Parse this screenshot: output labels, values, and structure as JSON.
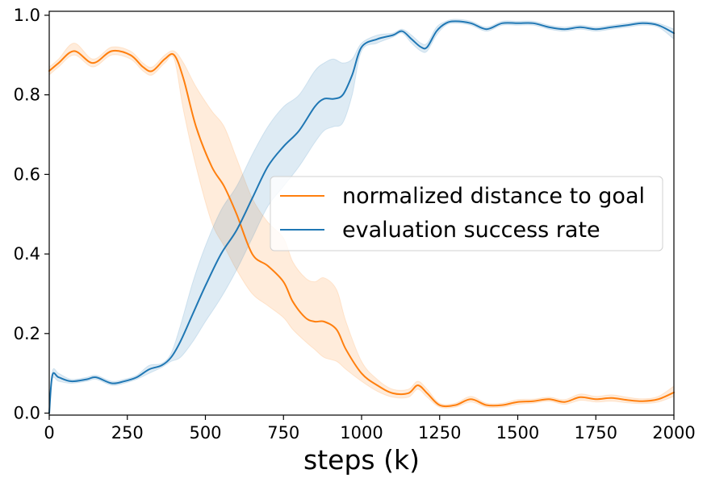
{
  "chart_data": {
    "type": "line",
    "title": "",
    "xlabel": "steps (k)",
    "ylabel": "",
    "xlim": [
      0,
      2000
    ],
    "ylim": [
      -0.005,
      1.01
    ],
    "xticks": [
      0,
      250,
      500,
      750,
      1000,
      1250,
      1500,
      1750,
      2000
    ],
    "yticks": [
      0.0,
      0.2,
      0.4,
      0.6,
      0.8,
      1.0
    ],
    "xtick_labels": [
      "0",
      "250",
      "500",
      "750",
      "1000",
      "1250",
      "1500",
      "1750",
      "2000"
    ],
    "ytick_labels": [
      "0.0",
      "0.2",
      "0.4",
      "0.6",
      "0.8",
      "1.0"
    ],
    "grid": false,
    "legend_position": "center-right",
    "series": [
      {
        "name": "normalized distance to goal",
        "color": "#ff7f0e",
        "x": [
          0,
          30,
          80,
          140,
          200,
          260,
          300,
          330,
          370,
          400,
          430,
          470,
          520,
          560,
          600,
          650,
          700,
          750,
          780,
          820,
          850,
          880,
          920,
          950,
          1000,
          1050,
          1100,
          1150,
          1180,
          1210,
          1250,
          1300,
          1350,
          1400,
          1450,
          1500,
          1550,
          1600,
          1650,
          1700,
          1750,
          1800,
          1850,
          1900,
          1950,
          2000
        ],
        "y": [
          0.86,
          0.88,
          0.91,
          0.88,
          0.91,
          0.9,
          0.87,
          0.86,
          0.89,
          0.9,
          0.84,
          0.72,
          0.62,
          0.57,
          0.5,
          0.4,
          0.37,
          0.33,
          0.28,
          0.24,
          0.23,
          0.23,
          0.21,
          0.16,
          0.1,
          0.07,
          0.05,
          0.05,
          0.07,
          0.05,
          0.02,
          0.02,
          0.035,
          0.02,
          0.02,
          0.028,
          0.03,
          0.035,
          0.028,
          0.04,
          0.035,
          0.038,
          0.033,
          0.03,
          0.035,
          0.052
        ],
        "lower": [
          0.85,
          0.87,
          0.9,
          0.87,
          0.9,
          0.89,
          0.86,
          0.85,
          0.88,
          0.89,
          0.76,
          0.62,
          0.48,
          0.42,
          0.36,
          0.3,
          0.27,
          0.24,
          0.21,
          0.18,
          0.16,
          0.14,
          0.13,
          0.11,
          0.08,
          0.055,
          0.04,
          0.04,
          0.06,
          0.04,
          0.015,
          0.015,
          0.028,
          0.015,
          0.015,
          0.022,
          0.025,
          0.03,
          0.022,
          0.032,
          0.028,
          0.03,
          0.026,
          0.024,
          0.028,
          0.042
        ],
        "upper": [
          0.87,
          0.89,
          0.93,
          0.89,
          0.92,
          0.91,
          0.88,
          0.87,
          0.9,
          0.91,
          0.88,
          0.82,
          0.76,
          0.72,
          0.64,
          0.54,
          0.48,
          0.44,
          0.38,
          0.34,
          0.33,
          0.34,
          0.31,
          0.23,
          0.13,
          0.085,
          0.06,
          0.06,
          0.08,
          0.06,
          0.025,
          0.025,
          0.042,
          0.025,
          0.025,
          0.034,
          0.035,
          0.04,
          0.034,
          0.048,
          0.042,
          0.046,
          0.04,
          0.036,
          0.042,
          0.068
        ]
      },
      {
        "name": "evaluation success rate",
        "color": "#1f77b4",
        "x": [
          0,
          10,
          30,
          70,
          120,
          150,
          200,
          240,
          280,
          320,
          360,
          390,
          420,
          460,
          500,
          550,
          600,
          650,
          700,
          750,
          800,
          850,
          880,
          910,
          940,
          970,
          1000,
          1050,
          1100,
          1130,
          1160,
          1190,
          1210,
          1240,
          1270,
          1300,
          1350,
          1400,
          1450,
          1500,
          1550,
          1600,
          1650,
          1700,
          1750,
          1800,
          1850,
          1900,
          1950,
          2000
        ],
        "y": [
          0.0,
          0.095,
          0.09,
          0.08,
          0.085,
          0.09,
          0.075,
          0.08,
          0.09,
          0.11,
          0.12,
          0.14,
          0.18,
          0.25,
          0.32,
          0.4,
          0.46,
          0.54,
          0.62,
          0.67,
          0.71,
          0.77,
          0.79,
          0.79,
          0.8,
          0.85,
          0.92,
          0.94,
          0.95,
          0.96,
          0.94,
          0.92,
          0.92,
          0.96,
          0.98,
          0.985,
          0.98,
          0.965,
          0.98,
          0.98,
          0.98,
          0.97,
          0.965,
          0.97,
          0.965,
          0.97,
          0.975,
          0.98,
          0.975,
          0.955
        ],
        "lower": [
          0.0,
          0.085,
          0.08,
          0.075,
          0.08,
          0.085,
          0.07,
          0.075,
          0.085,
          0.1,
          0.115,
          0.13,
          0.14,
          0.18,
          0.23,
          0.29,
          0.36,
          0.44,
          0.52,
          0.57,
          0.62,
          0.68,
          0.71,
          0.72,
          0.73,
          0.8,
          0.91,
          0.93,
          0.945,
          0.955,
          0.93,
          0.91,
          0.91,
          0.95,
          0.975,
          0.98,
          0.975,
          0.96,
          0.975,
          0.975,
          0.975,
          0.965,
          0.96,
          0.965,
          0.96,
          0.965,
          0.97,
          0.975,
          0.97,
          0.94
        ],
        "upper": [
          0.0,
          0.105,
          0.1,
          0.085,
          0.09,
          0.095,
          0.08,
          0.085,
          0.095,
          0.12,
          0.125,
          0.15,
          0.22,
          0.33,
          0.42,
          0.51,
          0.57,
          0.65,
          0.72,
          0.77,
          0.8,
          0.86,
          0.88,
          0.89,
          0.88,
          0.89,
          0.93,
          0.95,
          0.955,
          0.965,
          0.95,
          0.93,
          0.93,
          0.97,
          0.985,
          0.99,
          0.985,
          0.97,
          0.985,
          0.985,
          0.985,
          0.975,
          0.97,
          0.975,
          0.97,
          0.975,
          0.98,
          0.985,
          0.98,
          0.965
        ]
      }
    ],
    "legend": [
      {
        "label": "normalized distance to goal",
        "color": "#ff7f0e"
      },
      {
        "label": "evaluation success rate",
        "color": "#1f77b4"
      }
    ]
  }
}
